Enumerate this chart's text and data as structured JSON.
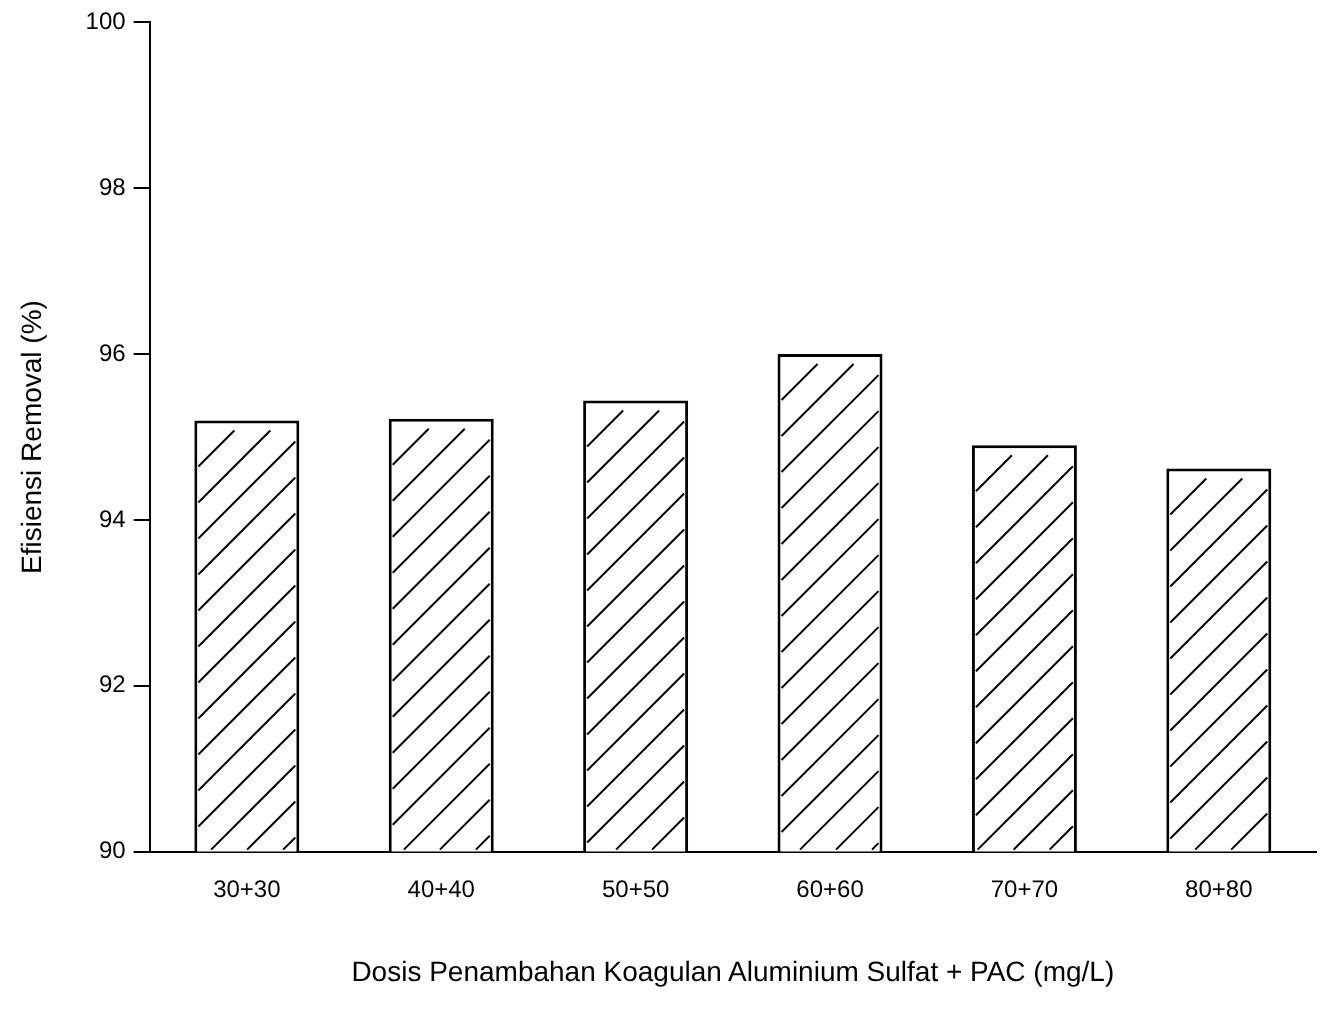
{
  "chart_data": {
    "type": "bar",
    "xlabel": "Dosis Penambahan Koagulan Aluminium Sulfat + PAC (mg/L)",
    "ylabel": "Efisiensi Removal (%)",
    "categories": [
      "30+30",
      "40+40",
      "50+50",
      "60+60",
      "70+70",
      "80+80"
    ],
    "values": [
      95.2,
      95.22,
      95.44,
      96.0,
      94.9,
      94.62
    ],
    "color": "#ffffff",
    "ylim": [
      90,
      100
    ],
    "yticks": [
      90,
      92,
      94,
      96,
      98,
      100
    ],
    "grid": false,
    "legend": false
  }
}
